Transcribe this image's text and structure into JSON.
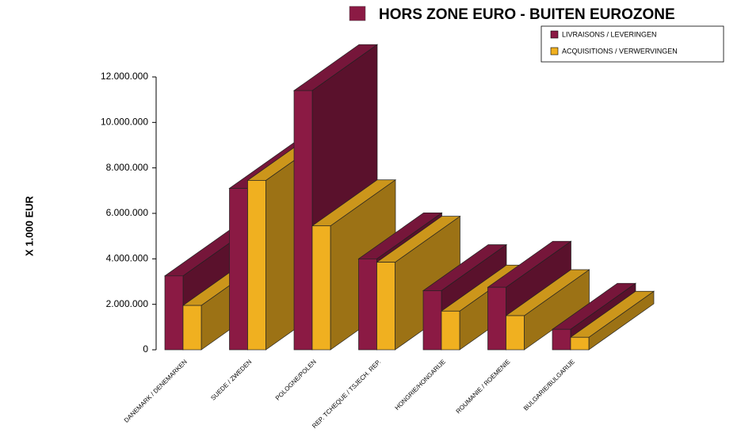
{
  "chart_data": {
    "type": "bar3d",
    "title": "HORS ZONE EURO - BUITEN EUROZONE",
    "y_label": "X 1.000 EUR",
    "categories": [
      "DANEMARK / DENEMARKEN",
      "SUEDE / ZWEDEN",
      "POLOGNE/POLEN",
      "REP. TCHEQUE / TSJECH. REP.",
      "HONGRIE/HONGARIJE",
      "ROUMANIE / ROEMENIE",
      "BULGARIE/BULGARIJE"
    ],
    "series": [
      {
        "name": "LIVRAISONS / LEVERINGEN",
        "color": "#8b1a44",
        "values": [
          3250000,
          7100000,
          11400000,
          4000000,
          2600000,
          2750000,
          900000
        ]
      },
      {
        "name": "ACQUISITIONS / VERWERVINGEN",
        "color": "#f0b020",
        "values": [
          1950000,
          7450000,
          5450000,
          3850000,
          1700000,
          1500000,
          550000
        ]
      }
    ],
    "ylim": [
      0,
      12000000
    ],
    "yticks": [
      0,
      {
        "value": 2000000,
        "label": "2.000.000"
      },
      {
        "value": 4000000,
        "label": "4.000.000"
      },
      {
        "value": 6000000,
        "label": "6.000.000"
      },
      {
        "value": 8000000,
        "label": "8.000.000"
      },
      {
        "value": 10000000,
        "label": "10.000.000"
      },
      {
        "value": 12000000,
        "label": "12.000.000"
      }
    ],
    "grid": false
  }
}
